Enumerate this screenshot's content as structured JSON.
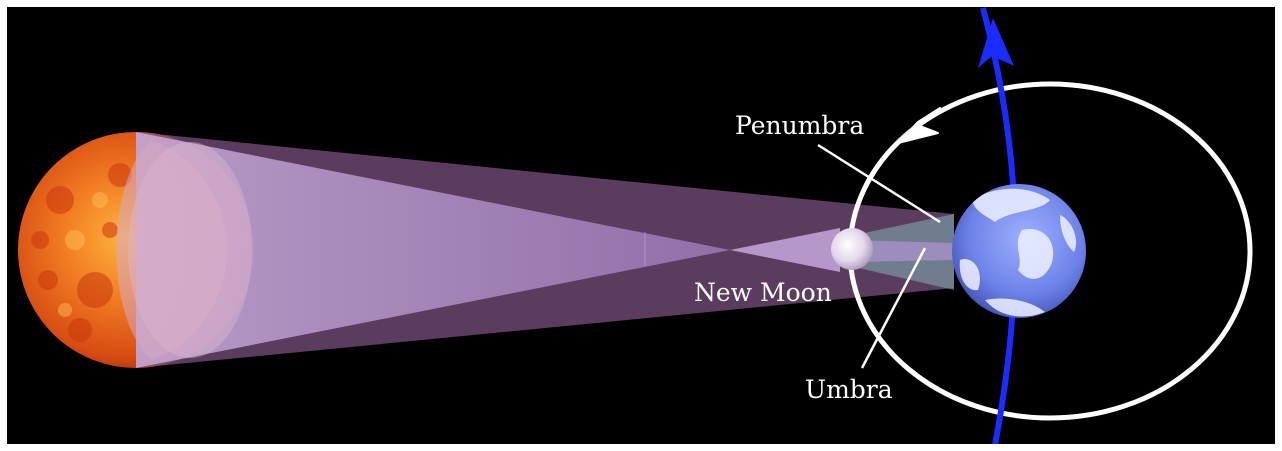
{
  "labels": {
    "penumbra": "Penumbra",
    "new_moon": "New Moon",
    "umbra": "Umbra"
  },
  "colors": {
    "background": "#000000",
    "frame": "#ffffff",
    "sun": "#e8641c",
    "shadow_cone": "#b89ad0",
    "earth": "#6f86ea",
    "earth_orbit": "#1a2cff",
    "moon_orbit": "#ffffff",
    "label_text": "#ffffff"
  },
  "icons": [
    "sun",
    "moon",
    "earth",
    "orbit-direction-arrow"
  ]
}
